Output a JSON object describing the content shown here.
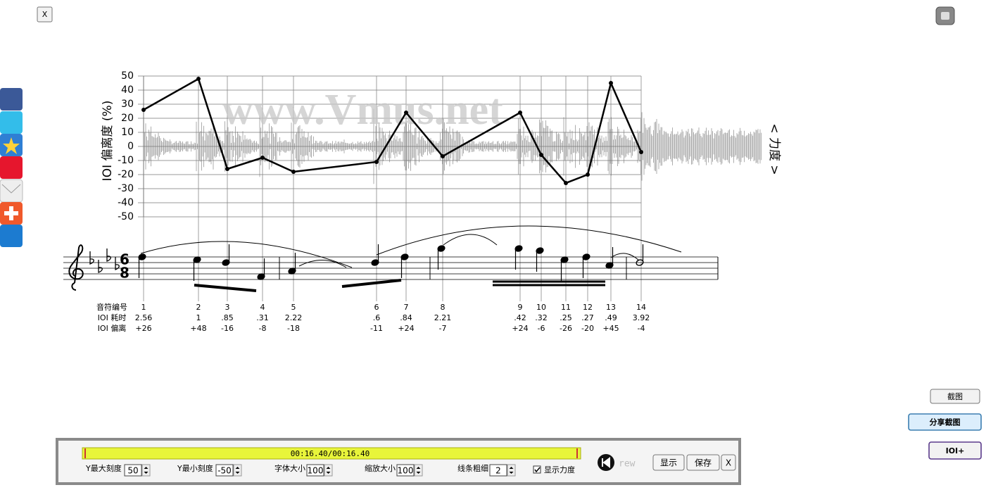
{
  "window": {
    "close_button": "X"
  },
  "chart_data": {
    "type": "line",
    "ylabel": "IOI 偏离度 (%)",
    "y2label": "< 力度 >",
    "watermark": "www.Vmus.net",
    "categories": [
      "1",
      "2",
      "3",
      "4",
      "5",
      "6",
      "7",
      "8",
      "9",
      "10",
      "11",
      "12",
      "13",
      "14"
    ],
    "series": [
      {
        "color": "#000000",
        "values": [
          26,
          48,
          -16,
          -8,
          -18,
          -11,
          24,
          -7,
          24,
          -6,
          -26,
          -20,
          45,
          -4
        ],
        "value_labels": [
          "+26",
          "+48",
          "-16",
          "-8",
          "-18",
          "-11",
          "+24",
          "-7",
          "+24",
          "-6",
          "-26",
          "-20",
          "+45",
          "-4"
        ]
      }
    ],
    "ylim": [
      -50,
      50
    ],
    "yticks": [
      -50,
      -40,
      -30,
      -20,
      -10,
      0,
      10,
      20,
      30,
      40,
      50
    ],
    "grid": true
  },
  "score": {
    "time_top": "6",
    "time_bottom": "8",
    "row_labels": [
      "音符编号",
      "IOI 耗时",
      "IOI 偏离"
    ],
    "ioi_durations": [
      "2.56",
      "1",
      ".85",
      ".31",
      "2.22",
      ".6",
      ".84",
      "2.21",
      ".42",
      ".32",
      ".25",
      ".27",
      ".49",
      "3.92"
    ]
  },
  "controls": {
    "time": "00:16.40/00:16.40",
    "rew": "rew",
    "fields": [
      {
        "label": "Y最大刻度",
        "value": "50"
      },
      {
        "label": "Y最小刻度",
        "value": "-50"
      },
      {
        "label": "字体大小",
        "value": "100"
      },
      {
        "label": "缩放大小",
        "value": "100"
      },
      {
        "label": "线条粗细",
        "value": "2"
      }
    ],
    "checkbox": "显示力度",
    "buttons": [
      "显示",
      "保存",
      "X"
    ]
  },
  "side_buttons": [
    "截图",
    "分享截图",
    "IOI+"
  ]
}
